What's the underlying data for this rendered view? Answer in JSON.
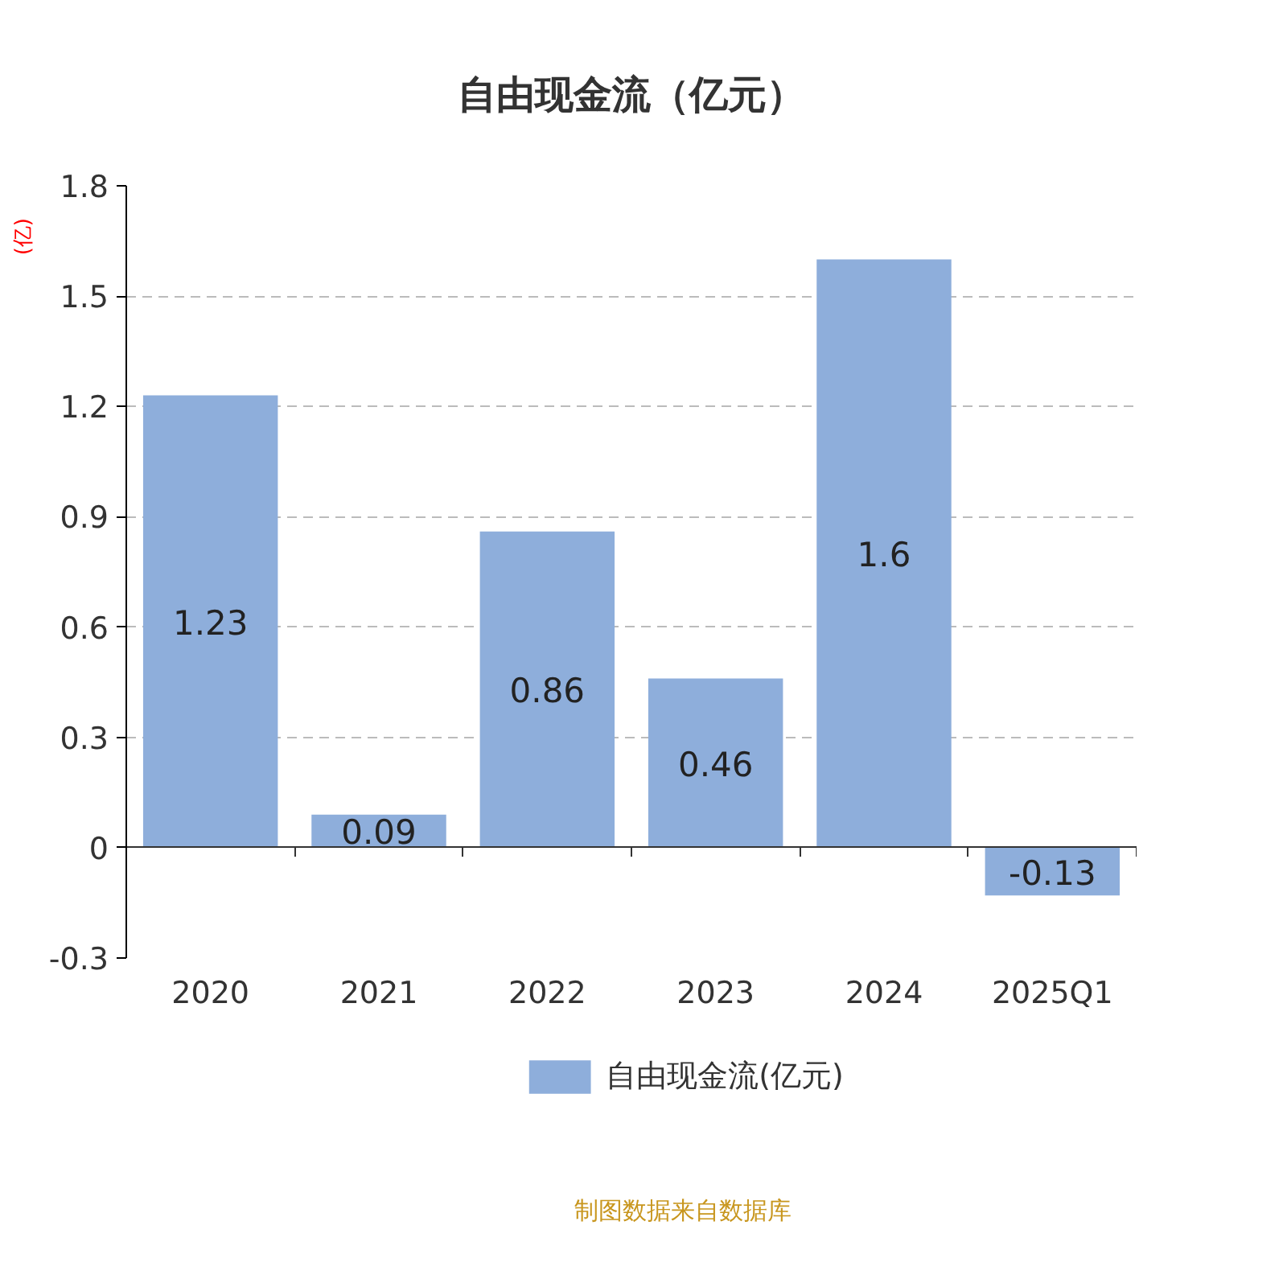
{
  "chart_data": {
    "type": "bar",
    "title": "自由现金流（亿元）",
    "ylabel": "(亿)",
    "categories": [
      "2020",
      "2021",
      "2022",
      "2023",
      "2024",
      "2025Q1"
    ],
    "series": [
      {
        "name": "自由现金流(亿元)",
        "color": "#8eaedb",
        "values": [
          1.23,
          0.09,
          0.86,
          0.46,
          1.6,
          -0.13
        ]
      }
    ],
    "ylim": [
      -0.3,
      1.8
    ],
    "yticks": [
      -0.3,
      0,
      0.3,
      0.6,
      0.9,
      1.2,
      1.5,
      1.8
    ],
    "grid": "y",
    "legend": "bottom",
    "data_labels": true,
    "annotations": [
      "制图数据来自数据库"
    ]
  }
}
